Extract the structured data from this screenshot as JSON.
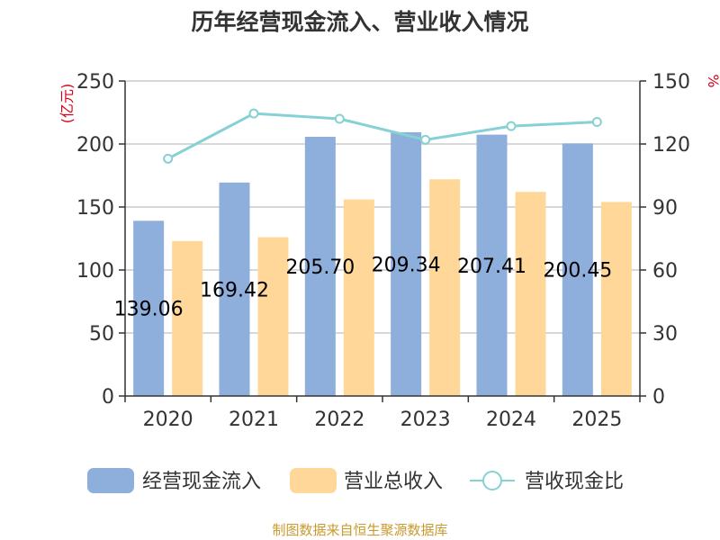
{
  "chart_data": {
    "type": "bar",
    "title": "历年经营现金流入、营业收入情况",
    "categories": [
      "2020",
      "2021",
      "2022",
      "2023",
      "2024",
      "2025"
    ],
    "ylabel_left": "(亿元)",
    "ylabel_right": "%",
    "ylim_left": [
      0,
      250
    ],
    "ylim_right": [
      0,
      150
    ],
    "yticks_left": [
      0,
      50,
      100,
      150,
      200,
      250
    ],
    "yticks_right": [
      0,
      30,
      60,
      90,
      120,
      150
    ],
    "grid": true,
    "series": [
      {
        "name": "经营现金流入",
        "type": "bar",
        "axis": "left",
        "color": "#8eaedb",
        "values": [
          139.06,
          169.42,
          205.7,
          209.34,
          207.41,
          200.45
        ],
        "labels": [
          "139.06",
          "169.42",
          "205.70",
          "209.34",
          "207.41",
          "200.45"
        ]
      },
      {
        "name": "营业总收入",
        "type": "bar",
        "axis": "left",
        "color": "#ffd899",
        "values": [
          123.0,
          126.0,
          156.0,
          172.0,
          162.0,
          154.0
        ]
      },
      {
        "name": "营收现金比",
        "type": "line",
        "axis": "right",
        "color": "#86d1d4",
        "values": [
          113.0,
          134.5,
          132.0,
          122.0,
          128.5,
          130.5
        ]
      }
    ],
    "legend_position": "bottom",
    "source": "制图数据来自恒生聚源数据库"
  },
  "colors": {
    "title": "#333333",
    "axis": "#333333",
    "grid": "#cccccc",
    "unit": "#d9001b",
    "source": "#c99a2e"
  }
}
